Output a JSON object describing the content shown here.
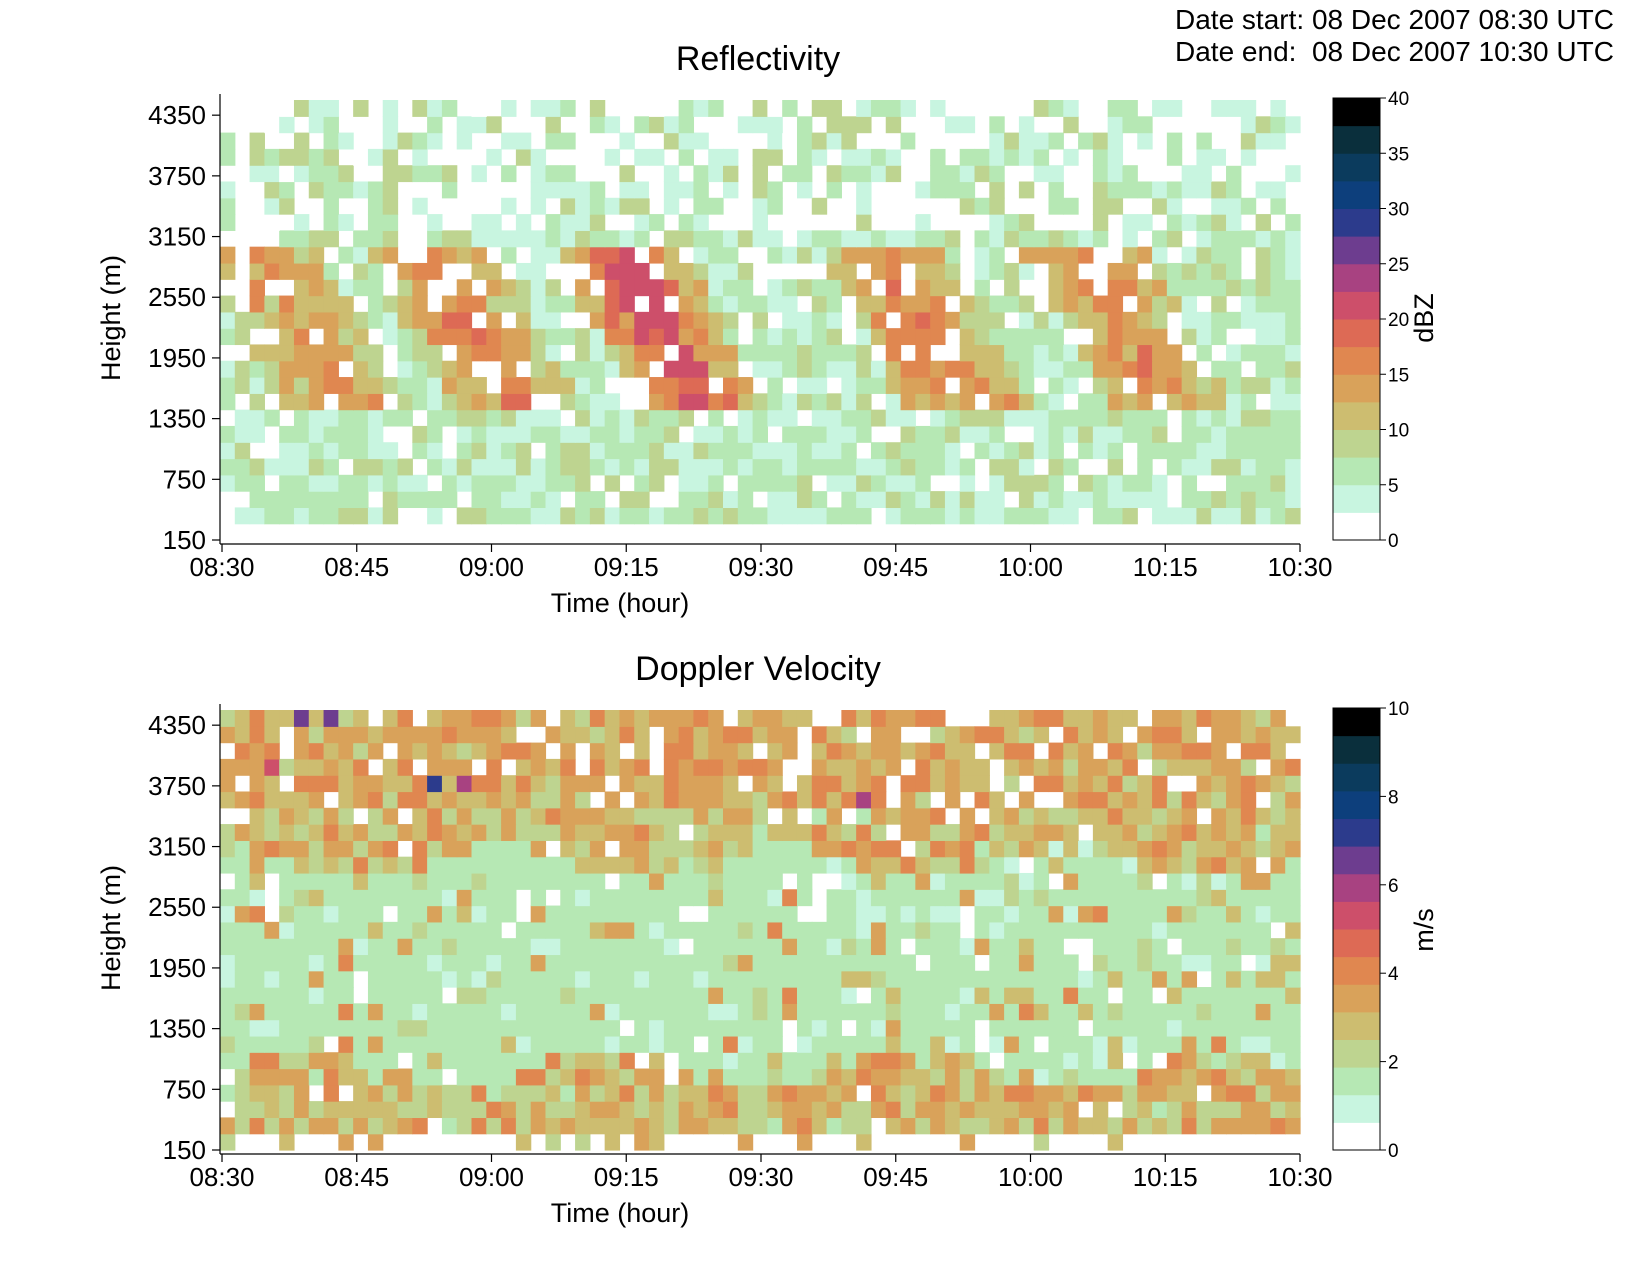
{
  "header": {
    "date_start_label": "Date start:",
    "date_start_value": "08 Dec 2007 08:30 UTC",
    "date_end_label": "Date end:",
    "date_end_value": "08 Dec 2007 10:30 UTC"
  },
  "chart_data": [
    {
      "type": "heatmap",
      "title": "Reflectivity",
      "xlabel": "Time (hour)",
      "ylabel": "Height (m)",
      "x_ticks": [
        "08:30",
        "08:45",
        "09:00",
        "09:15",
        "09:30",
        "09:45",
        "10:00",
        "10:15",
        "10:30"
      ],
      "y_ticks": [
        "150",
        "750",
        "1350",
        "1950",
        "2550",
        "3150",
        "3750",
        "4350"
      ],
      "y_tick_values": [
        150,
        750,
        1350,
        1950,
        2550,
        3150,
        3750,
        4350
      ],
      "x_range": [
        "08:30",
        "10:30"
      ],
      "y_range": [
        150,
        4500
      ],
      "colorbar": {
        "label": "dBZ",
        "min": 0,
        "max": 40,
        "ticks": [
          "0",
          "5",
          "10",
          "15",
          "20",
          "25",
          "30",
          "35",
          "40"
        ]
      },
      "grid": false,
      "description_of_field": "Scattered light echoes (0-10 dBZ) throughout 150-4500 m; enhanced slanted streaks of 10-20 dBZ between ~1500 and ~2800 m, strongest (~18-20 dBZ) near 09:08-09:15 around 2000-2500 m"
    },
    {
      "type": "heatmap",
      "title": "Doppler Velocity",
      "xlabel": "Time (hour)",
      "ylabel": "Height (m)",
      "x_ticks": [
        "08:30",
        "08:45",
        "09:00",
        "09:15",
        "09:30",
        "09:45",
        "10:00",
        "10:15",
        "10:30"
      ],
      "y_ticks": [
        "150",
        "750",
        "1350",
        "1950",
        "2550",
        "3150",
        "3750",
        "4350"
      ],
      "y_tick_values": [
        150,
        750,
        1350,
        1950,
        2550,
        3150,
        3750,
        4350
      ],
      "x_range": [
        "08:30",
        "10:30"
      ],
      "y_range": [
        150,
        4500
      ],
      "colorbar": {
        "label": "m/s",
        "min": 0,
        "max": 10,
        "ticks": [
          "0",
          "2",
          "4",
          "6",
          "8",
          "10"
        ]
      },
      "grid": false,
      "description_of_field": "Mostly 1-4 m/s; broad low-velocity (~1.5 m/s) regions between ~700 and ~3000 m, higher values (3-4 m/s) above ~3100 m and near the surface"
    }
  ],
  "colors": {
    "scale": [
      "#ffffff",
      "#c8f5e0",
      "#b6e8b4",
      "#bed490",
      "#cdbd70",
      "#d9a25a",
      "#e08750",
      "#dd6a55",
      "#cd4f6a",
      "#a84281",
      "#6d3d8f",
      "#2c3b8c",
      "#0d3f7c",
      "#0b3b5d",
      "#0a2f3c",
      "#082023",
      "#000000"
    ]
  }
}
